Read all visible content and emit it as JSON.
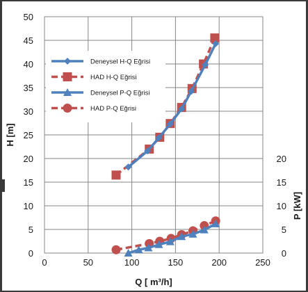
{
  "chart_data": {
    "type": "line",
    "xlabel": "Q [ m³/h]",
    "ylabel_left": "H [m]",
    "ylabel_right": "P [kW]",
    "xlim": [
      0,
      250
    ],
    "ylim_left": [
      0,
      50
    ],
    "ylim_right": [
      0,
      20
    ],
    "x_ticks": [
      "0",
      "50",
      "100",
      "150",
      "200",
      "250"
    ],
    "y_left_ticks": [
      "0",
      "5",
      "10",
      "15",
      "20",
      "25",
      "30",
      "35",
      "40",
      "45",
      "50"
    ],
    "y_right_ticks": [
      "0",
      "5",
      "10",
      "15",
      "20"
    ],
    "grid": true,
    "legend_position": "top-left",
    "series": [
      {
        "name": "Deneysel H-Q Eğrisi",
        "axis": "left",
        "color": "#4f81bd",
        "dash": "solid",
        "marker": "diamond",
        "points": [
          [
            96,
            18.2
          ],
          [
            118,
            21.6
          ],
          [
            131,
            24.4
          ],
          [
            144,
            27.3
          ],
          [
            157,
            30.5
          ],
          [
            168,
            34.2
          ],
          [
            184,
            39.8
          ],
          [
            196,
            44.3
          ]
        ]
      },
      {
        "name": "HAD H-Q Eğrisi",
        "axis": "left",
        "color": "#c0504d",
        "dash": "dashed",
        "marker": "square",
        "points": [
          [
            82,
            16.5
          ],
          [
            120,
            22.0
          ],
          [
            132,
            24.5
          ],
          [
            144,
            27.4
          ],
          [
            157,
            30.8
          ],
          [
            169,
            34.8
          ],
          [
            182,
            40.0
          ],
          [
            195,
            45.5
          ]
        ]
      },
      {
        "name": "Deneysel P-Q Eğrisi",
        "axis": "right",
        "color": "#4f81bd",
        "dash": "solid",
        "marker": "triangle",
        "points": [
          [
            96,
            0.0
          ],
          [
            108,
            0.7
          ],
          [
            119,
            1.1
          ],
          [
            131,
            1.8
          ],
          [
            144,
            2.4
          ],
          [
            157,
            3.5
          ],
          [
            170,
            4.0
          ],
          [
            183,
            4.9
          ],
          [
            196,
            6.2
          ]
        ]
      },
      {
        "name": "HAD P-Q Eğrisi",
        "axis": "right",
        "color": "#c0504d",
        "dash": "dashed",
        "marker": "circle",
        "points": [
          [
            82,
            0.7
          ],
          [
            120,
            2.0
          ],
          [
            132,
            2.5
          ],
          [
            145,
            3.1
          ],
          [
            157,
            3.9
          ],
          [
            170,
            4.7
          ],
          [
            183,
            5.8
          ],
          [
            196,
            6.8
          ]
        ]
      }
    ]
  }
}
